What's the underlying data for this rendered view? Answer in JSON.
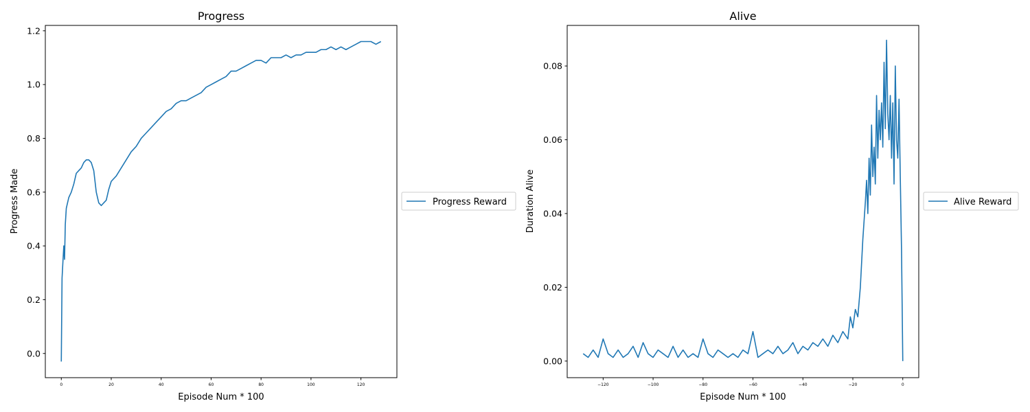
{
  "colors": {
    "series": "#1f77b4",
    "axes": "#000000",
    "legend_border": "#cccccc"
  },
  "chart_data": [
    {
      "type": "line",
      "title": "Progress",
      "xlabel": "Episode Num * 100",
      "ylabel": "Progress Made",
      "xlim": [
        -6.4,
        134.4
      ],
      "ylim": [
        -0.09,
        1.22
      ],
      "xticks": [
        0,
        20,
        40,
        60,
        80,
        100,
        120
      ],
      "xtick_labels": [
        "0",
        "20",
        "40",
        "60",
        "80",
        "100",
        "120"
      ],
      "yticks": [
        0.0,
        0.2,
        0.4,
        0.6,
        0.8,
        1.0,
        1.2
      ],
      "ytick_labels": [
        "0.0",
        "0.2",
        "0.4",
        "0.6",
        "0.8",
        "1.0",
        "1.2"
      ],
      "legend_placement": "outside-right",
      "grid": false,
      "series": [
        {
          "name": "Progress Reward",
          "x": [
            0,
            0.3,
            0.7,
            1,
            1.3,
            1.6,
            2,
            2.5,
            3,
            4,
            5,
            6,
            7,
            8,
            9,
            10,
            11,
            12,
            13,
            14,
            15,
            16,
            17,
            18,
            19,
            20,
            22,
            24,
            26,
            28,
            30,
            32,
            34,
            36,
            38,
            40,
            42,
            44,
            46,
            48,
            50,
            52,
            54,
            56,
            58,
            60,
            62,
            64,
            66,
            68,
            70,
            72,
            74,
            76,
            78,
            80,
            82,
            84,
            86,
            88,
            90,
            92,
            94,
            96,
            98,
            100,
            102,
            104,
            106,
            108,
            110,
            112,
            114,
            116,
            118,
            120,
            122,
            124,
            126,
            128
          ],
          "y": [
            -0.03,
            0.28,
            0.35,
            0.4,
            0.35,
            0.48,
            0.54,
            0.56,
            0.58,
            0.6,
            0.63,
            0.67,
            0.68,
            0.69,
            0.71,
            0.72,
            0.72,
            0.71,
            0.68,
            0.6,
            0.56,
            0.55,
            0.56,
            0.57,
            0.61,
            0.64,
            0.66,
            0.69,
            0.72,
            0.75,
            0.77,
            0.8,
            0.82,
            0.84,
            0.86,
            0.88,
            0.9,
            0.91,
            0.93,
            0.94,
            0.94,
            0.95,
            0.96,
            0.97,
            0.99,
            1.0,
            1.01,
            1.02,
            1.03,
            1.05,
            1.05,
            1.06,
            1.07,
            1.08,
            1.09,
            1.09,
            1.08,
            1.1,
            1.1,
            1.1,
            1.11,
            1.1,
            1.11,
            1.11,
            1.12,
            1.12,
            1.12,
            1.13,
            1.13,
            1.14,
            1.13,
            1.14,
            1.13,
            1.14,
            1.15,
            1.16,
            1.16,
            1.16,
            1.15,
            1.16
          ]
        }
      ]
    },
    {
      "type": "line",
      "title": "Alive",
      "xlabel": "Episode Num * 100",
      "ylabel": "Duration Alive",
      "xlim": [
        -134.4,
        6.4
      ],
      "ylim": [
        -0.0045,
        0.091
      ],
      "xticks": [
        -120,
        -100,
        -80,
        -60,
        -40,
        -20,
        0
      ],
      "xtick_labels": [
        "−120",
        "−100",
        "−80",
        "−60",
        "−40",
        "−20",
        "0"
      ],
      "yticks": [
        0.0,
        0.02,
        0.04,
        0.06,
        0.08
      ],
      "ytick_labels": [
        "0.00",
        "0.02",
        "0.04",
        "0.06",
        "0.08"
      ],
      "legend_placement": "outside-right",
      "grid": false,
      "series": [
        {
          "name": "Alive Reward",
          "x": [
            -128,
            -126,
            -124,
            -122,
            -120,
            -118,
            -116,
            -114,
            -112,
            -110,
            -108,
            -106,
            -104,
            -102,
            -100,
            -98,
            -96,
            -94,
            -92,
            -90,
            -88,
            -86,
            -84,
            -82,
            -80,
            -78,
            -76,
            -74,
            -72,
            -70,
            -68,
            -66,
            -64,
            -62,
            -60,
            -58,
            -56,
            -54,
            -52,
            -50,
            -48,
            -46,
            -44,
            -42,
            -40,
            -38,
            -36,
            -34,
            -32,
            -30,
            -28,
            -26,
            -24,
            -22,
            -21,
            -20,
            -19,
            -18,
            -17,
            -16,
            -15,
            -14.5,
            -14,
            -13.5,
            -13,
            -12.5,
            -12,
            -11.5,
            -11,
            -10.5,
            -10,
            -9.5,
            -9,
            -8.5,
            -8,
            -7.5,
            -7,
            -6.5,
            -6,
            -5.5,
            -5,
            -4.5,
            -4,
            -3.5,
            -3,
            -2.5,
            -2,
            -1.5,
            -1,
            -0.5,
            0
          ],
          "y": [
            0.002,
            0.001,
            0.003,
            0.001,
            0.006,
            0.002,
            0.001,
            0.003,
            0.001,
            0.002,
            0.004,
            0.001,
            0.005,
            0.002,
            0.001,
            0.003,
            0.002,
            0.001,
            0.004,
            0.001,
            0.003,
            0.001,
            0.002,
            0.001,
            0.006,
            0.002,
            0.001,
            0.003,
            0.002,
            0.001,
            0.002,
            0.001,
            0.003,
            0.002,
            0.008,
            0.001,
            0.002,
            0.003,
            0.002,
            0.004,
            0.002,
            0.003,
            0.005,
            0.002,
            0.004,
            0.003,
            0.005,
            0.004,
            0.006,
            0.004,
            0.007,
            0.005,
            0.008,
            0.006,
            0.012,
            0.009,
            0.014,
            0.012,
            0.02,
            0.033,
            0.043,
            0.049,
            0.04,
            0.055,
            0.045,
            0.064,
            0.05,
            0.058,
            0.048,
            0.072,
            0.055,
            0.068,
            0.06,
            0.07,
            0.058,
            0.081,
            0.063,
            0.087,
            0.067,
            0.06,
            0.072,
            0.055,
            0.07,
            0.048,
            0.08,
            0.06,
            0.055,
            0.071,
            0.05,
            0.03,
            0.0
          ]
        }
      ]
    }
  ]
}
